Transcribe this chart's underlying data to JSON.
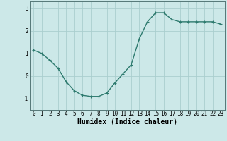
{
  "x": [
    0,
    1,
    2,
    3,
    4,
    5,
    6,
    7,
    8,
    9,
    10,
    11,
    12,
    13,
    14,
    15,
    16,
    17,
    18,
    19,
    20,
    21,
    22,
    23
  ],
  "y": [
    1.15,
    1.0,
    0.7,
    0.35,
    -0.25,
    -0.65,
    -0.85,
    -0.9,
    -0.9,
    -0.75,
    -0.3,
    0.1,
    0.5,
    1.65,
    2.4,
    2.8,
    2.8,
    2.5,
    2.4,
    2.4,
    2.4,
    2.4,
    2.4,
    2.3
  ],
  "line_color": "#2d7a6e",
  "marker": "+",
  "markersize": 3.5,
  "linewidth": 1.0,
  "xlabel": "Humidex (Indice chaleur)",
  "xlabel_fontsize": 7,
  "ylim": [
    -1.5,
    3.3
  ],
  "xlim": [
    -0.5,
    23.5
  ],
  "yticks": [
    -1,
    0,
    1,
    2,
    3
  ],
  "xticks": [
    0,
    1,
    2,
    3,
    4,
    5,
    6,
    7,
    8,
    9,
    10,
    11,
    12,
    13,
    14,
    15,
    16,
    17,
    18,
    19,
    20,
    21,
    22,
    23
  ],
  "bg_color": "#cce8e8",
  "grid_color": "#aacece",
  "tick_fontsize": 5.5,
  "figsize": [
    3.2,
    2.0
  ],
  "dpi": 100
}
